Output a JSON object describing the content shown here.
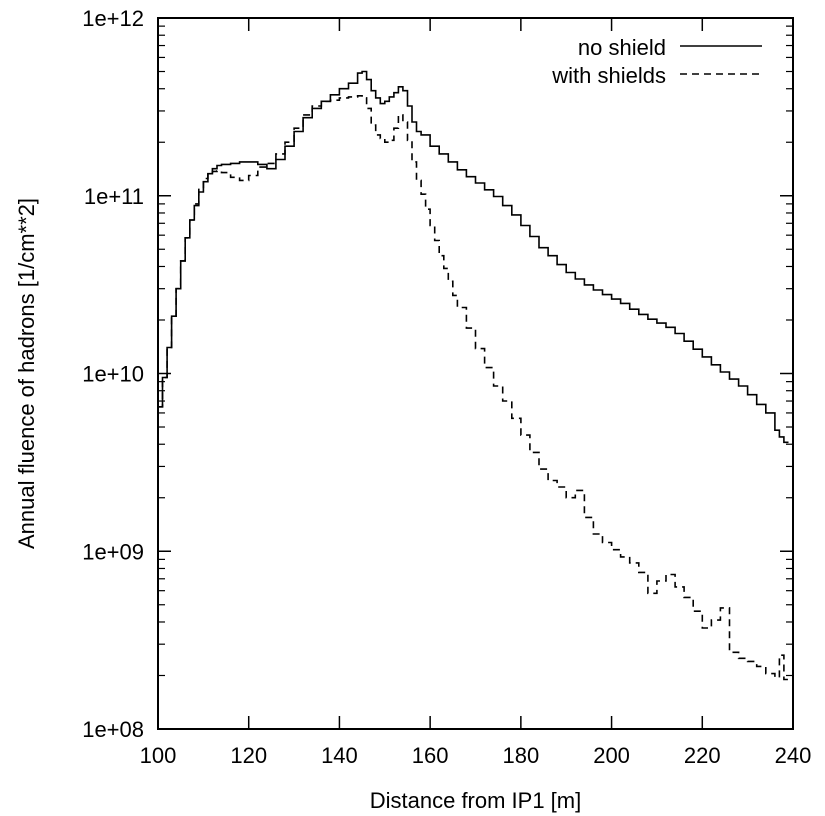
{
  "chart_data": {
    "type": "line",
    "xlabel": "Distance from IP1 [m]",
    "ylabel": "Annual fluence of hadrons [1/cm**2]",
    "xlim": [
      100,
      240
    ],
    "ylim": [
      100000000.0,
      1000000000000.0
    ],
    "y_scale": "log",
    "grid": false,
    "legend_position": "top-right",
    "x_ticks": [
      100,
      120,
      140,
      160,
      180,
      200,
      220,
      240
    ],
    "x_tick_labels": [
      "100",
      "120",
      "140",
      "160",
      "180",
      "200",
      "220",
      "240"
    ],
    "y_ticks": [
      100000000.0,
      1000000000.0,
      10000000000.0,
      100000000000.0,
      1000000000000.0
    ],
    "y_tick_labels": [
      "1e+08",
      "1e+09",
      "1e+10",
      "1e+11",
      "1e+12"
    ],
    "series": [
      {
        "name": "no shield",
        "style": "solid",
        "x": [
          100,
          101,
          102,
          103,
          104,
          105,
          106,
          107,
          108,
          109,
          110,
          111,
          112,
          113,
          114,
          116,
          118,
          120,
          122,
          124,
          126,
          128,
          130,
          132,
          134,
          136,
          138,
          140,
          142,
          144,
          145,
          146,
          147,
          148,
          149,
          150,
          151,
          152,
          153,
          154,
          155,
          156,
          157,
          158,
          160,
          162,
          164,
          166,
          168,
          170,
          172,
          174,
          176,
          178,
          180,
          182,
          184,
          186,
          188,
          190,
          192,
          194,
          196,
          198,
          200,
          202,
          204,
          206,
          208,
          210,
          212,
          214,
          216,
          218,
          220,
          222,
          224,
          226,
          228,
          230,
          232,
          234,
          236,
          237,
          238
        ],
        "y": [
          6500000000.0,
          9500000000.0,
          14000000000.0,
          21000000000.0,
          30000000000.0,
          43000000000.0,
          58000000000.0,
          73000000000.0,
          88000000000.0,
          105000000000.0,
          120000000000.0,
          133000000000.0,
          142000000000.0,
          148000000000.0,
          150000000000.0,
          152000000000.0,
          155000000000.0,
          155000000000.0,
          150000000000.0,
          142000000000.0,
          160000000000.0,
          190000000000.0,
          230000000000.0,
          275000000000.0,
          310000000000.0,
          340000000000.0,
          370000000000.0,
          400000000000.0,
          430000000000.0,
          490000000000.0,
          500000000000.0,
          450000000000.0,
          390000000000.0,
          355000000000.0,
          330000000000.0,
          340000000000.0,
          360000000000.0,
          380000000000.0,
          410000000000.0,
          390000000000.0,
          320000000000.0,
          260000000000.0,
          230000000000.0,
          220000000000.0,
          190000000000.0,
          172000000000.0,
          155000000000.0,
          140000000000.0,
          128000000000.0,
          118000000000.0,
          108000000000.0,
          99000000000.0,
          88000000000.0,
          78000000000.0,
          68000000000.0,
          59000000000.0,
          51000000000.0,
          46000000000.0,
          41000000000.0,
          37000000000.0,
          34000000000.0,
          31500000000.0,
          29500000000.0,
          27800000000.0,
          26200000000.0,
          24800000000.0,
          23000000000.0,
          21500000000.0,
          20200000000.0,
          19200000000.0,
          18200000000.0,
          16800000000.0,
          15200000000.0,
          13700000000.0,
          12400000000.0,
          11200000000.0,
          10200000000.0,
          9300000000.0,
          8500000000.0,
          7600000000.0,
          6700000000.0,
          6000000000.0,
          4800000000.0,
          4400000000.0,
          4100000000.0
        ]
      },
      {
        "name": "with shields",
        "style": "dashed",
        "x": [
          100,
          101,
          102,
          103,
          104,
          105,
          106,
          107,
          108,
          109,
          110,
          111,
          112,
          113,
          114,
          116,
          118,
          120,
          122,
          124,
          126,
          128,
          130,
          132,
          134,
          136,
          138,
          140,
          142,
          144,
          145,
          146,
          147,
          148,
          149,
          150,
          151,
          152,
          153,
          154,
          155,
          156,
          157,
          158,
          159,
          160,
          161,
          162,
          163,
          164,
          165,
          166,
          168,
          170,
          172,
          174,
          176,
          178,
          180,
          182,
          184,
          186,
          188,
          190,
          192,
          194,
          196,
          198,
          200,
          202,
          204,
          206,
          208,
          210,
          212,
          214,
          216,
          218,
          220,
          222,
          224,
          226,
          228,
          230,
          232,
          234,
          236,
          237,
          238
        ],
        "y": [
          6500000000.0,
          9500000000.0,
          14000000000.0,
          21000000000.0,
          30000000000.0,
          43000000000.0,
          58000000000.0,
          73000000000.0,
          90000000000.0,
          110000000000.0,
          125000000000.0,
          132000000000.0,
          137000000000.0,
          138000000000.0,
          135000000000.0,
          127000000000.0,
          122000000000.0,
          130000000000.0,
          145000000000.0,
          152000000000.0,
          172000000000.0,
          200000000000.0,
          240000000000.0,
          285000000000.0,
          320000000000.0,
          340000000000.0,
          345000000000.0,
          355000000000.0,
          360000000000.0,
          365000000000.0,
          355000000000.0,
          310000000000.0,
          250000000000.0,
          220000000000.0,
          210000000000.0,
          200000000000.0,
          205000000000.0,
          240000000000.0,
          285000000000.0,
          260000000000.0,
          205000000000.0,
          155000000000.0,
          122000000000.0,
          102000000000.0,
          84000000000.0,
          68000000000.0,
          56000000000.0,
          46000000000.0,
          39000000000.0,
          33000000000.0,
          27500000000.0,
          23500000000.0,
          18000000000.0,
          13800000000.0,
          10800000000.0,
          8500000000.0,
          7000000000.0,
          5600000000.0,
          4500000000.0,
          3600000000.0,
          2900000000.0,
          2500000000.0,
          2300000000.0,
          2000000000.0,
          2200000000.0,
          1550000000.0,
          1250000000.0,
          1120000000.0,
          1020000000.0,
          930000000.0,
          860000000.0,
          760000000.0,
          580000000.0,
          680000000.0,
          740000000.0,
          630000000.0,
          550000000.0,
          460000000.0,
          370000000.0,
          410000000.0,
          480000000.0,
          270000000.0,
          250000000.0,
          240000000.0,
          225000000.0,
          205000000.0,
          195000000.0,
          260000000.0,
          190000000.0
        ]
      }
    ]
  }
}
